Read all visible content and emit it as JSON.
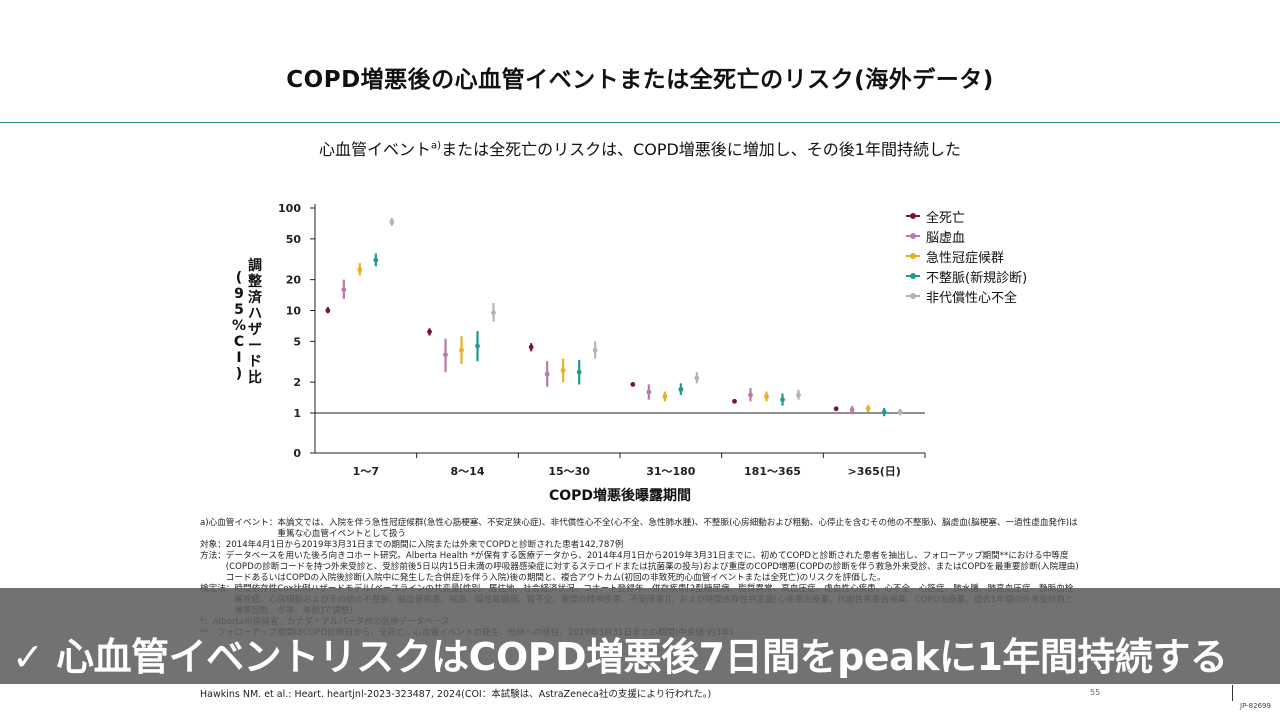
{
  "slide": {
    "title": "COPD増悪後の心血管イベントまたは全死亡のリスク(海外データ)",
    "subtitle_pre": "心血管イベント",
    "subtitle_sup": "a)",
    "subtitle_post": "または全死亡のリスクは、COPD増悪後に増加し、その後1年間持続した"
  },
  "chart_data": {
    "type": "scatter",
    "title": "",
    "xlabel": "COPD増悪後曝露期間",
    "ylabel": "調整済ハザード比(95%CI)",
    "yscale": "log",
    "yticks": [
      0,
      1,
      2,
      5,
      10,
      20,
      50,
      100
    ],
    "categories": [
      "1〜7",
      "8〜14",
      "15〜30",
      "31〜180",
      "181〜365",
      ">365(日)"
    ],
    "reference_line": 1,
    "series": [
      {
        "name": "全死亡",
        "color": "#7a1040",
        "points": [
          {
            "est": 10,
            "lo": 9.4,
            "hi": 10.8
          },
          {
            "est": 6.2,
            "lo": 5.7,
            "hi": 6.7
          },
          {
            "est": 4.4,
            "lo": 4.0,
            "hi": 4.8
          },
          {
            "est": 1.9,
            "lo": 1.85,
            "hi": 1.97
          },
          {
            "est": 1.3,
            "lo": 1.26,
            "hi": 1.34
          },
          {
            "est": 1.1,
            "lo": 1.07,
            "hi": 1.13
          }
        ]
      },
      {
        "name": "脳虚血",
        "color": "#b87aa8",
        "points": [
          {
            "est": 16,
            "lo": 13,
            "hi": 20
          },
          {
            "est": 3.7,
            "lo": 2.5,
            "hi": 5.3
          },
          {
            "est": 2.4,
            "lo": 1.8,
            "hi": 3.2
          },
          {
            "est": 1.6,
            "lo": 1.35,
            "hi": 1.9
          },
          {
            "est": 1.5,
            "lo": 1.3,
            "hi": 1.75
          },
          {
            "est": 1.07,
            "lo": 0.97,
            "hi": 1.17
          }
        ]
      },
      {
        "name": "急性冠症候群",
        "color": "#e8b020",
        "points": [
          {
            "est": 25,
            "lo": 22,
            "hi": 29
          },
          {
            "est": 4.1,
            "lo": 3.0,
            "hi": 5.6
          },
          {
            "est": 2.6,
            "lo": 2.0,
            "hi": 3.4
          },
          {
            "est": 1.45,
            "lo": 1.3,
            "hi": 1.62
          },
          {
            "est": 1.45,
            "lo": 1.3,
            "hi": 1.62
          },
          {
            "est": 1.1,
            "lo": 1.02,
            "hi": 1.2
          }
        ]
      },
      {
        "name": "不整脈(新規診断)",
        "color": "#1e9a90",
        "points": [
          {
            "est": 31,
            "lo": 27,
            "hi": 36
          },
          {
            "est": 4.5,
            "lo": 3.2,
            "hi": 6.3
          },
          {
            "est": 2.5,
            "lo": 1.9,
            "hi": 3.3
          },
          {
            "est": 1.7,
            "lo": 1.5,
            "hi": 1.95
          },
          {
            "est": 1.35,
            "lo": 1.18,
            "hi": 1.55
          },
          {
            "est": 1.02,
            "lo": 0.93,
            "hi": 1.12
          }
        ]
      },
      {
        "name": "非代償性心不全",
        "color": "#b0b4b6",
        "points": [
          {
            "est": 73,
            "lo": 67,
            "hi": 80
          },
          {
            "est": 9.5,
            "lo": 7.8,
            "hi": 11.8
          },
          {
            "est": 4.1,
            "lo": 3.4,
            "hi": 5.0
          },
          {
            "est": 2.2,
            "lo": 1.95,
            "hi": 2.5
          },
          {
            "est": 1.5,
            "lo": 1.35,
            "hi": 1.68
          },
          {
            "est": 1.02,
            "lo": 0.95,
            "hi": 1.1
          }
        ]
      }
    ]
  },
  "ylabel_chars": [
    "調",
    "整",
    "済",
    "ハ",
    "ザ",
    "ー",
    "ド",
    "比"
  ],
  "ylabel_paren": [
    "(",
    "9",
    "5",
    "%",
    "C",
    "I",
    ")"
  ],
  "notes": [
    {
      "k": "a)心血管イベント：",
      "v": "本論文では、入院を伴う急性冠症候群(急性心筋梗塞、不安定狭心症)、非代償性心不全(心不全、急性肺水腫)、不整脈(心房細動および粗動、心停止を含むその他の不整脈)、脳虚血(脳梗塞、一過性虚血発作)は重篤な心血管イベントとして扱う"
    },
    {
      "k": "対象：",
      "v": "2014年4月1日から2019年3月31日までの期間に入院または外来でCOPDと診断された患者142,787例"
    },
    {
      "k": "方法：",
      "v": "データベースを用いた後ろ向きコホート研究。Alberta Health *が保有する医療データから、2014年4月1日から2019年3月31日までに、初めてCOPDと診断された患者を抽出し、フォローアップ期間**における中等度(COPDの診断コードを持つ外来受診と、受診前後5日以内15日未満の呼吸器感染症に対するステロイドまたは抗菌薬の投与)および重度のCOPD増悪(COPDの診断を伴う救急外来受診、またはCOPDを最重要診断(入院理由)コードあるいはCOPDの入院後診断(入院中に発生した合併症)を伴う入院)後の期間と、複合アウトカム(初回の非致死的心血管イベントまたは全死亡)のリスクを評価した。"
    },
    {
      "k": "検定法：",
      "v": "時間依存性Cox比例ハザードモデル(ベースラインの共変量[性別、居住地、社会経済状況、コホート登録年、併存疾患[2型糖尿病、脂質異常、高血圧症、虚血性心疾患、心不全、心筋症、肺水腫、肺高血圧症、静脈血栓塞栓症、心房細動およびその他の不整脈、脳血管疾患、喘息、慢性腎臓病、腎不全、重度の精神疾患、不安障害]]、および時間依存性共変量[心疾患治療薬、代謝性疾患治療薬、COPD治療薬、過去1年間の外来受診数と増悪回数、冬季、年齢]で調整)"
    },
    {
      "k": "*：",
      "v": "Alberta州保健省、カナダ・アルバータ州の医療データベース"
    },
    {
      "k": "**：",
      "v": "フォローアップ期間はCOPD診断日から、全死亡、心血管イベントの発生、他州への移住、2019年3月31日までの期間(中央値:約3年)"
    }
  ],
  "citation": "Hawkins NM. et al.: Heart. heartjnl-2023-323487, 2024(COI：本試験は、AstraZeneca社の支援により行われた。)",
  "page_number": "55",
  "doc_code": "JP-82699",
  "banner": "✓ 心血管イベントリスクはCOPD増悪後7日間をpeakに1年間持続する"
}
